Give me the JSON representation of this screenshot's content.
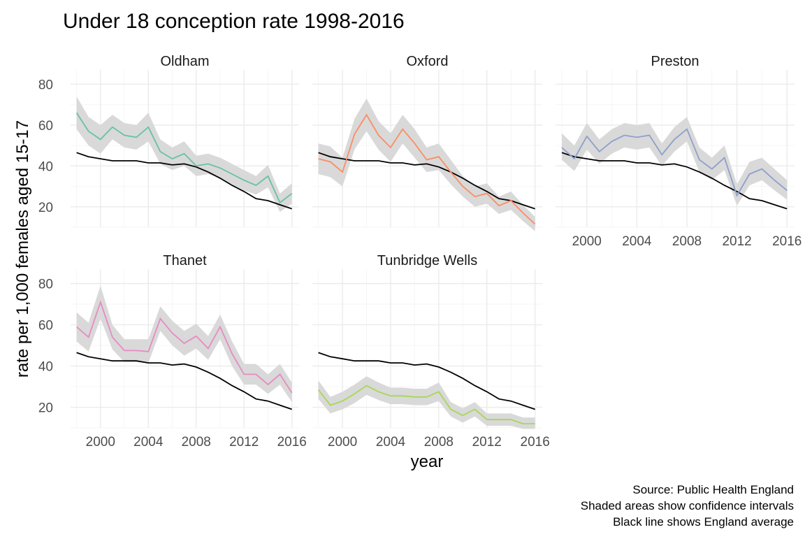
{
  "chart_data": {
    "type": "line",
    "title": "Under 18 conception rate 1998-2016",
    "xlabel": "year",
    "ylabel": "rate per 1,000 females aged 15-17",
    "xlim": [
      1997.5,
      2016.6
    ],
    "ylim": [
      10,
      87
    ],
    "x_ticks": [
      "2000",
      "2004",
      "2008",
      "2012",
      "2016"
    ],
    "y_ticks": [
      "20",
      "40",
      "60",
      "80"
    ],
    "grid": true,
    "x": [
      1998,
      1999,
      2000,
      2001,
      2002,
      2003,
      2004,
      2005,
      2006,
      2007,
      2008,
      2009,
      2010,
      2011,
      2012,
      2013,
      2014,
      2015,
      2016
    ],
    "england_average": [
      46.5,
      44.5,
      43.5,
      42.5,
      42.5,
      42.5,
      41.5,
      41.5,
      40.5,
      41.0,
      39.5,
      37.0,
      34.0,
      30.5,
      27.5,
      24.0,
      23.0,
      21.0,
      19.0
    ],
    "facets": [
      {
        "name": "Oldham",
        "color": "#66c2a5",
        "values": [
          66,
          57,
          53,
          59,
          55,
          54,
          59,
          47,
          43.5,
          46,
          40,
          41,
          39,
          36,
          33,
          30.5,
          35,
          22,
          26.5
        ],
        "lower": [
          58,
          50,
          46,
          53,
          49,
          48,
          52,
          41,
          38,
          40,
          35,
          36,
          34,
          31,
          28,
          26,
          29.5,
          17.5,
          21.5
        ],
        "upper": [
          74,
          64,
          60,
          65,
          61,
          60,
          66,
          53,
          49,
          52,
          45,
          46,
          44,
          41,
          38,
          35,
          40.5,
          26.5,
          31.5
        ]
      },
      {
        "name": "Oxford",
        "color": "#fc8d62",
        "values": [
          43.5,
          42,
          37,
          55.5,
          65,
          55,
          49,
          58,
          51,
          43,
          44.5,
          37,
          30,
          25,
          26.5,
          20.5,
          23,
          17,
          11.5
        ],
        "lower": [
          36,
          34.5,
          30,
          48,
          57,
          48,
          42,
          51,
          44,
          37,
          38,
          31,
          25,
          20,
          21.5,
          16.5,
          18.5,
          13,
          8
        ],
        "upper": [
          51,
          49.5,
          44,
          63,
          73,
          62,
          56,
          65,
          58,
          49,
          51,
          43,
          35,
          30,
          31.5,
          25,
          27.5,
          21,
          15
        ]
      },
      {
        "name": "Preston",
        "color": "#8da0cb",
        "values": [
          49,
          43.5,
          54.5,
          47,
          52,
          55,
          54,
          55,
          45.5,
          53,
          58,
          43,
          38.5,
          44,
          25.5,
          36,
          38.5,
          33,
          28
        ],
        "lower": [
          43,
          37.5,
          48,
          41,
          46,
          49,
          48,
          49,
          40,
          47,
          52,
          37,
          33,
          38,
          20.5,
          30.5,
          33,
          28,
          23.5
        ],
        "upper": [
          56,
          50,
          61,
          53,
          58,
          61,
          60,
          61,
          51,
          59,
          64,
          49,
          44,
          50,
          31,
          42,
          44,
          38.5,
          33
        ]
      },
      {
        "name": "Thanet",
        "color": "#e78ac3",
        "values": [
          59,
          54,
          71,
          54,
          47.5,
          47.5,
          47,
          63,
          56,
          51,
          54.5,
          48.5,
          59,
          46,
          36,
          36,
          31,
          36,
          27
        ],
        "lower": [
          52,
          47,
          63,
          48,
          42,
          42,
          41.5,
          57,
          50,
          45,
          48.5,
          43,
          53,
          40,
          31,
          31,
          26.5,
          31,
          22.5
        ],
        "upper": [
          66,
          61,
          79,
          60,
          53,
          53,
          53,
          69,
          62,
          57,
          60.5,
          54.5,
          65,
          52,
          41,
          41,
          36,
          41,
          32
        ]
      },
      {
        "name": "Tunbridge Wells",
        "color": "#a6d854",
        "values": [
          28.5,
          21,
          23,
          26.5,
          30.5,
          27.5,
          25.5,
          25.5,
          25,
          25,
          27.5,
          19,
          16,
          19,
          14,
          14,
          14,
          12,
          12
        ],
        "lower": [
          24,
          17,
          19,
          22,
          26,
          23.5,
          21.5,
          21.5,
          21,
          21,
          23,
          15.5,
          12.5,
          15.5,
          11,
          11,
          11,
          9.5,
          9.5
        ],
        "upper": [
          33,
          25,
          27.5,
          31,
          35,
          32,
          29.5,
          29.5,
          29,
          29,
          32,
          22.5,
          19.5,
          22.5,
          17,
          17,
          17,
          15,
          15
        ]
      }
    ],
    "caption": [
      "Source: Public Health England",
      "Shaded areas show confidence intervals",
      "Black line shows England average"
    ],
    "colors": {
      "england_line": "#000000",
      "ribbon": "#d9d9d9",
      "grid_major": "#ebebeb",
      "grid_minor": "#f5f5f5"
    }
  }
}
